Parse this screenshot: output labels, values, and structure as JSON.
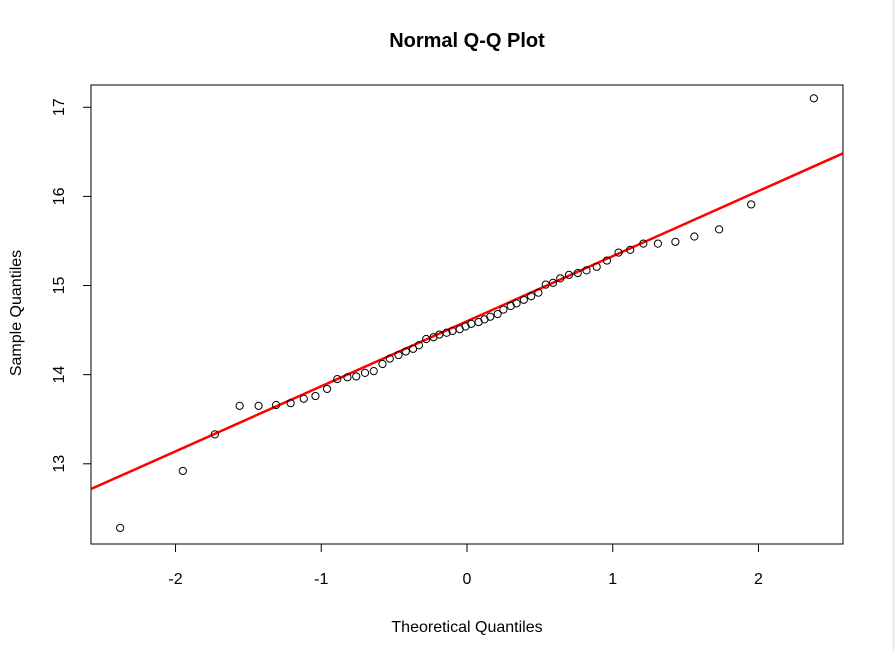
{
  "chart_data": {
    "type": "scatter",
    "title": "Normal Q-Q Plot",
    "xlabel": "Theoretical Quantiles",
    "ylabel": "Sample Quantiles",
    "xlim": [
      -2.58,
      2.58
    ],
    "ylim": [
      12.1,
      17.25
    ],
    "x_ticks": [
      -2,
      -1,
      0,
      1,
      2
    ],
    "y_ticks": [
      13,
      14,
      15,
      16,
      17
    ],
    "x_tick_labels": [
      "-2",
      "-1",
      "0",
      "1",
      "2"
    ],
    "y_tick_labels": [
      "13",
      "14",
      "15",
      "16",
      "17"
    ],
    "grid": false,
    "point_color": "#000000",
    "line_color": "#ff0000",
    "reference_line": {
      "intercept": 14.6,
      "slope": 0.73
    },
    "points": [
      {
        "x": -2.38,
        "y": 12.28
      },
      {
        "x": -1.95,
        "y": 12.92
      },
      {
        "x": -1.73,
        "y": 13.33
      },
      {
        "x": -1.56,
        "y": 13.65
      },
      {
        "x": -1.43,
        "y": 13.65
      },
      {
        "x": -1.31,
        "y": 13.66
      },
      {
        "x": -1.21,
        "y": 13.68
      },
      {
        "x": -1.12,
        "y": 13.73
      },
      {
        "x": -1.04,
        "y": 13.76
      },
      {
        "x": -0.96,
        "y": 13.84
      },
      {
        "x": -0.89,
        "y": 13.95
      },
      {
        "x": -0.82,
        "y": 13.97
      },
      {
        "x": -0.76,
        "y": 13.98
      },
      {
        "x": -0.7,
        "y": 14.02
      },
      {
        "x": -0.64,
        "y": 14.04
      },
      {
        "x": -0.58,
        "y": 14.12
      },
      {
        "x": -0.53,
        "y": 14.18
      },
      {
        "x": -0.47,
        "y": 14.22
      },
      {
        "x": -0.42,
        "y": 14.26
      },
      {
        "x": -0.37,
        "y": 14.29
      },
      {
        "x": -0.33,
        "y": 14.33
      },
      {
        "x": -0.28,
        "y": 14.4
      },
      {
        "x": -0.23,
        "y": 14.42
      },
      {
        "x": -0.19,
        "y": 14.45
      },
      {
        "x": -0.14,
        "y": 14.47
      },
      {
        "x": -0.1,
        "y": 14.49
      },
      {
        "x": -0.05,
        "y": 14.51
      },
      {
        "x": -0.01,
        "y": 14.54
      },
      {
        "x": 0.03,
        "y": 14.57
      },
      {
        "x": 0.08,
        "y": 14.59
      },
      {
        "x": 0.12,
        "y": 14.62
      },
      {
        "x": 0.16,
        "y": 14.65
      },
      {
        "x": 0.21,
        "y": 14.68
      },
      {
        "x": 0.25,
        "y": 14.73
      },
      {
        "x": 0.3,
        "y": 14.77
      },
      {
        "x": 0.34,
        "y": 14.8
      },
      {
        "x": 0.39,
        "y": 14.84
      },
      {
        "x": 0.44,
        "y": 14.88
      },
      {
        "x": 0.49,
        "y": 14.92
      },
      {
        "x": 0.54,
        "y": 15.01
      },
      {
        "x": 0.59,
        "y": 15.03
      },
      {
        "x": 0.64,
        "y": 15.08
      },
      {
        "x": 0.7,
        "y": 15.12
      },
      {
        "x": 0.76,
        "y": 15.14
      },
      {
        "x": 0.82,
        "y": 15.17
      },
      {
        "x": 0.89,
        "y": 15.21
      },
      {
        "x": 0.96,
        "y": 15.28
      },
      {
        "x": 1.04,
        "y": 15.37
      },
      {
        "x": 1.12,
        "y": 15.4
      },
      {
        "x": 1.21,
        "y": 15.47
      },
      {
        "x": 1.31,
        "y": 15.47
      },
      {
        "x": 1.43,
        "y": 15.49
      },
      {
        "x": 1.56,
        "y": 15.55
      },
      {
        "x": 1.73,
        "y": 15.63
      },
      {
        "x": 1.95,
        "y": 15.91
      },
      {
        "x": 2.38,
        "y": 17.1
      }
    ]
  }
}
